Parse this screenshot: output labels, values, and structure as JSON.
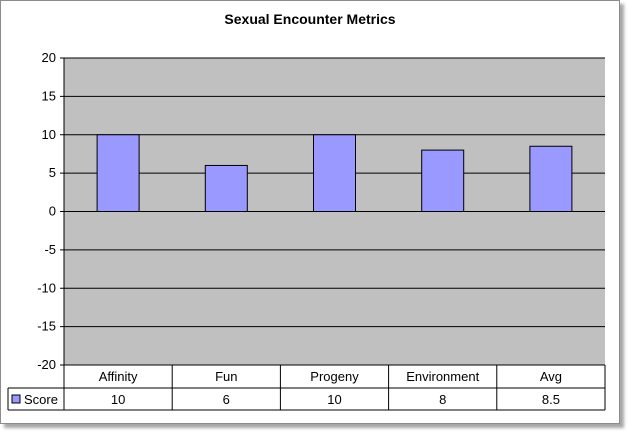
{
  "chart_data": {
    "type": "bar",
    "title": "Sexual Encounter Metrics",
    "categories": [
      "Affinity",
      "Fun",
      "Progeny",
      "Environment",
      "Avg"
    ],
    "series": [
      {
        "name": "Score",
        "values": [
          10,
          6,
          10,
          8,
          8.5
        ]
      }
    ],
    "y_ticks": [
      20,
      15,
      10,
      5,
      0,
      -5,
      -10,
      -15,
      -20
    ],
    "data_table": {
      "row_label": "Score",
      "values": [
        "10",
        "6",
        "10",
        "8",
        "8.5"
      ]
    },
    "ylim": [
      -20,
      20
    ],
    "grid": true,
    "legend": "data table row",
    "colors": {
      "plot_background": "#c0c0c0",
      "bar_fill": "#9999ff",
      "bar_stroke": "#000000",
      "gridline": "#000000"
    }
  }
}
